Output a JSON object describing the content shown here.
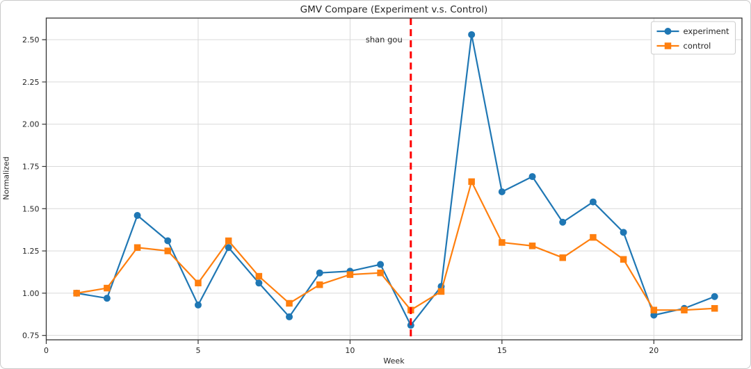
{
  "chart_data": {
    "type": "line",
    "title": "GMV Compare (Experiment v.s. Control)",
    "xlabel": "Week",
    "ylabel": "Normalized",
    "x": [
      1,
      2,
      3,
      4,
      5,
      6,
      7,
      8,
      9,
      10,
      11,
      12,
      13,
      14,
      15,
      16,
      17,
      18,
      19,
      20,
      21,
      22
    ],
    "series": [
      {
        "name": "experiment",
        "color": "#1f77b4",
        "marker": "circle",
        "values": [
          1.0,
          0.97,
          1.46,
          1.31,
          0.93,
          1.27,
          1.06,
          0.86,
          1.12,
          1.13,
          1.17,
          0.81,
          1.04,
          2.53,
          1.6,
          1.69,
          1.42,
          1.54,
          1.36,
          0.87,
          0.91,
          0.98
        ]
      },
      {
        "name": "control",
        "color": "#ff7f0e",
        "marker": "square",
        "values": [
          1.0,
          1.03,
          1.27,
          1.25,
          1.06,
          1.31,
          1.1,
          0.94,
          1.05,
          1.11,
          1.12,
          0.9,
          1.01,
          1.66,
          1.3,
          1.28,
          1.21,
          1.33,
          1.2,
          0.9,
          0.9,
          0.91
        ]
      }
    ],
    "vline": {
      "x": 12,
      "color": "#ff0000",
      "style": "dashed"
    },
    "annotation": {
      "text": "shan gou",
      "color": "#ff0000",
      "x": 12,
      "y": 2.5
    },
    "xticks": [
      0,
      5,
      10,
      15,
      20
    ],
    "xtick_labels": [
      "0",
      "5",
      "10",
      "15",
      "20"
    ],
    "yticks": [
      0.75,
      1.0,
      1.25,
      1.5,
      1.75,
      2.0,
      2.25,
      2.5
    ],
    "ytick_labels": [
      "0.75",
      "1.00",
      "1.25",
      "1.50",
      "1.75",
      "2.00",
      "2.25",
      "2.50"
    ],
    "xlim": [
      0,
      22.9
    ],
    "ylim": [
      0.724,
      2.628
    ],
    "grid": true,
    "grid_color": "#d9d9d9",
    "spine_color": "#333333",
    "legend_position": "upper right",
    "legend": [
      "experiment",
      "control"
    ]
  }
}
